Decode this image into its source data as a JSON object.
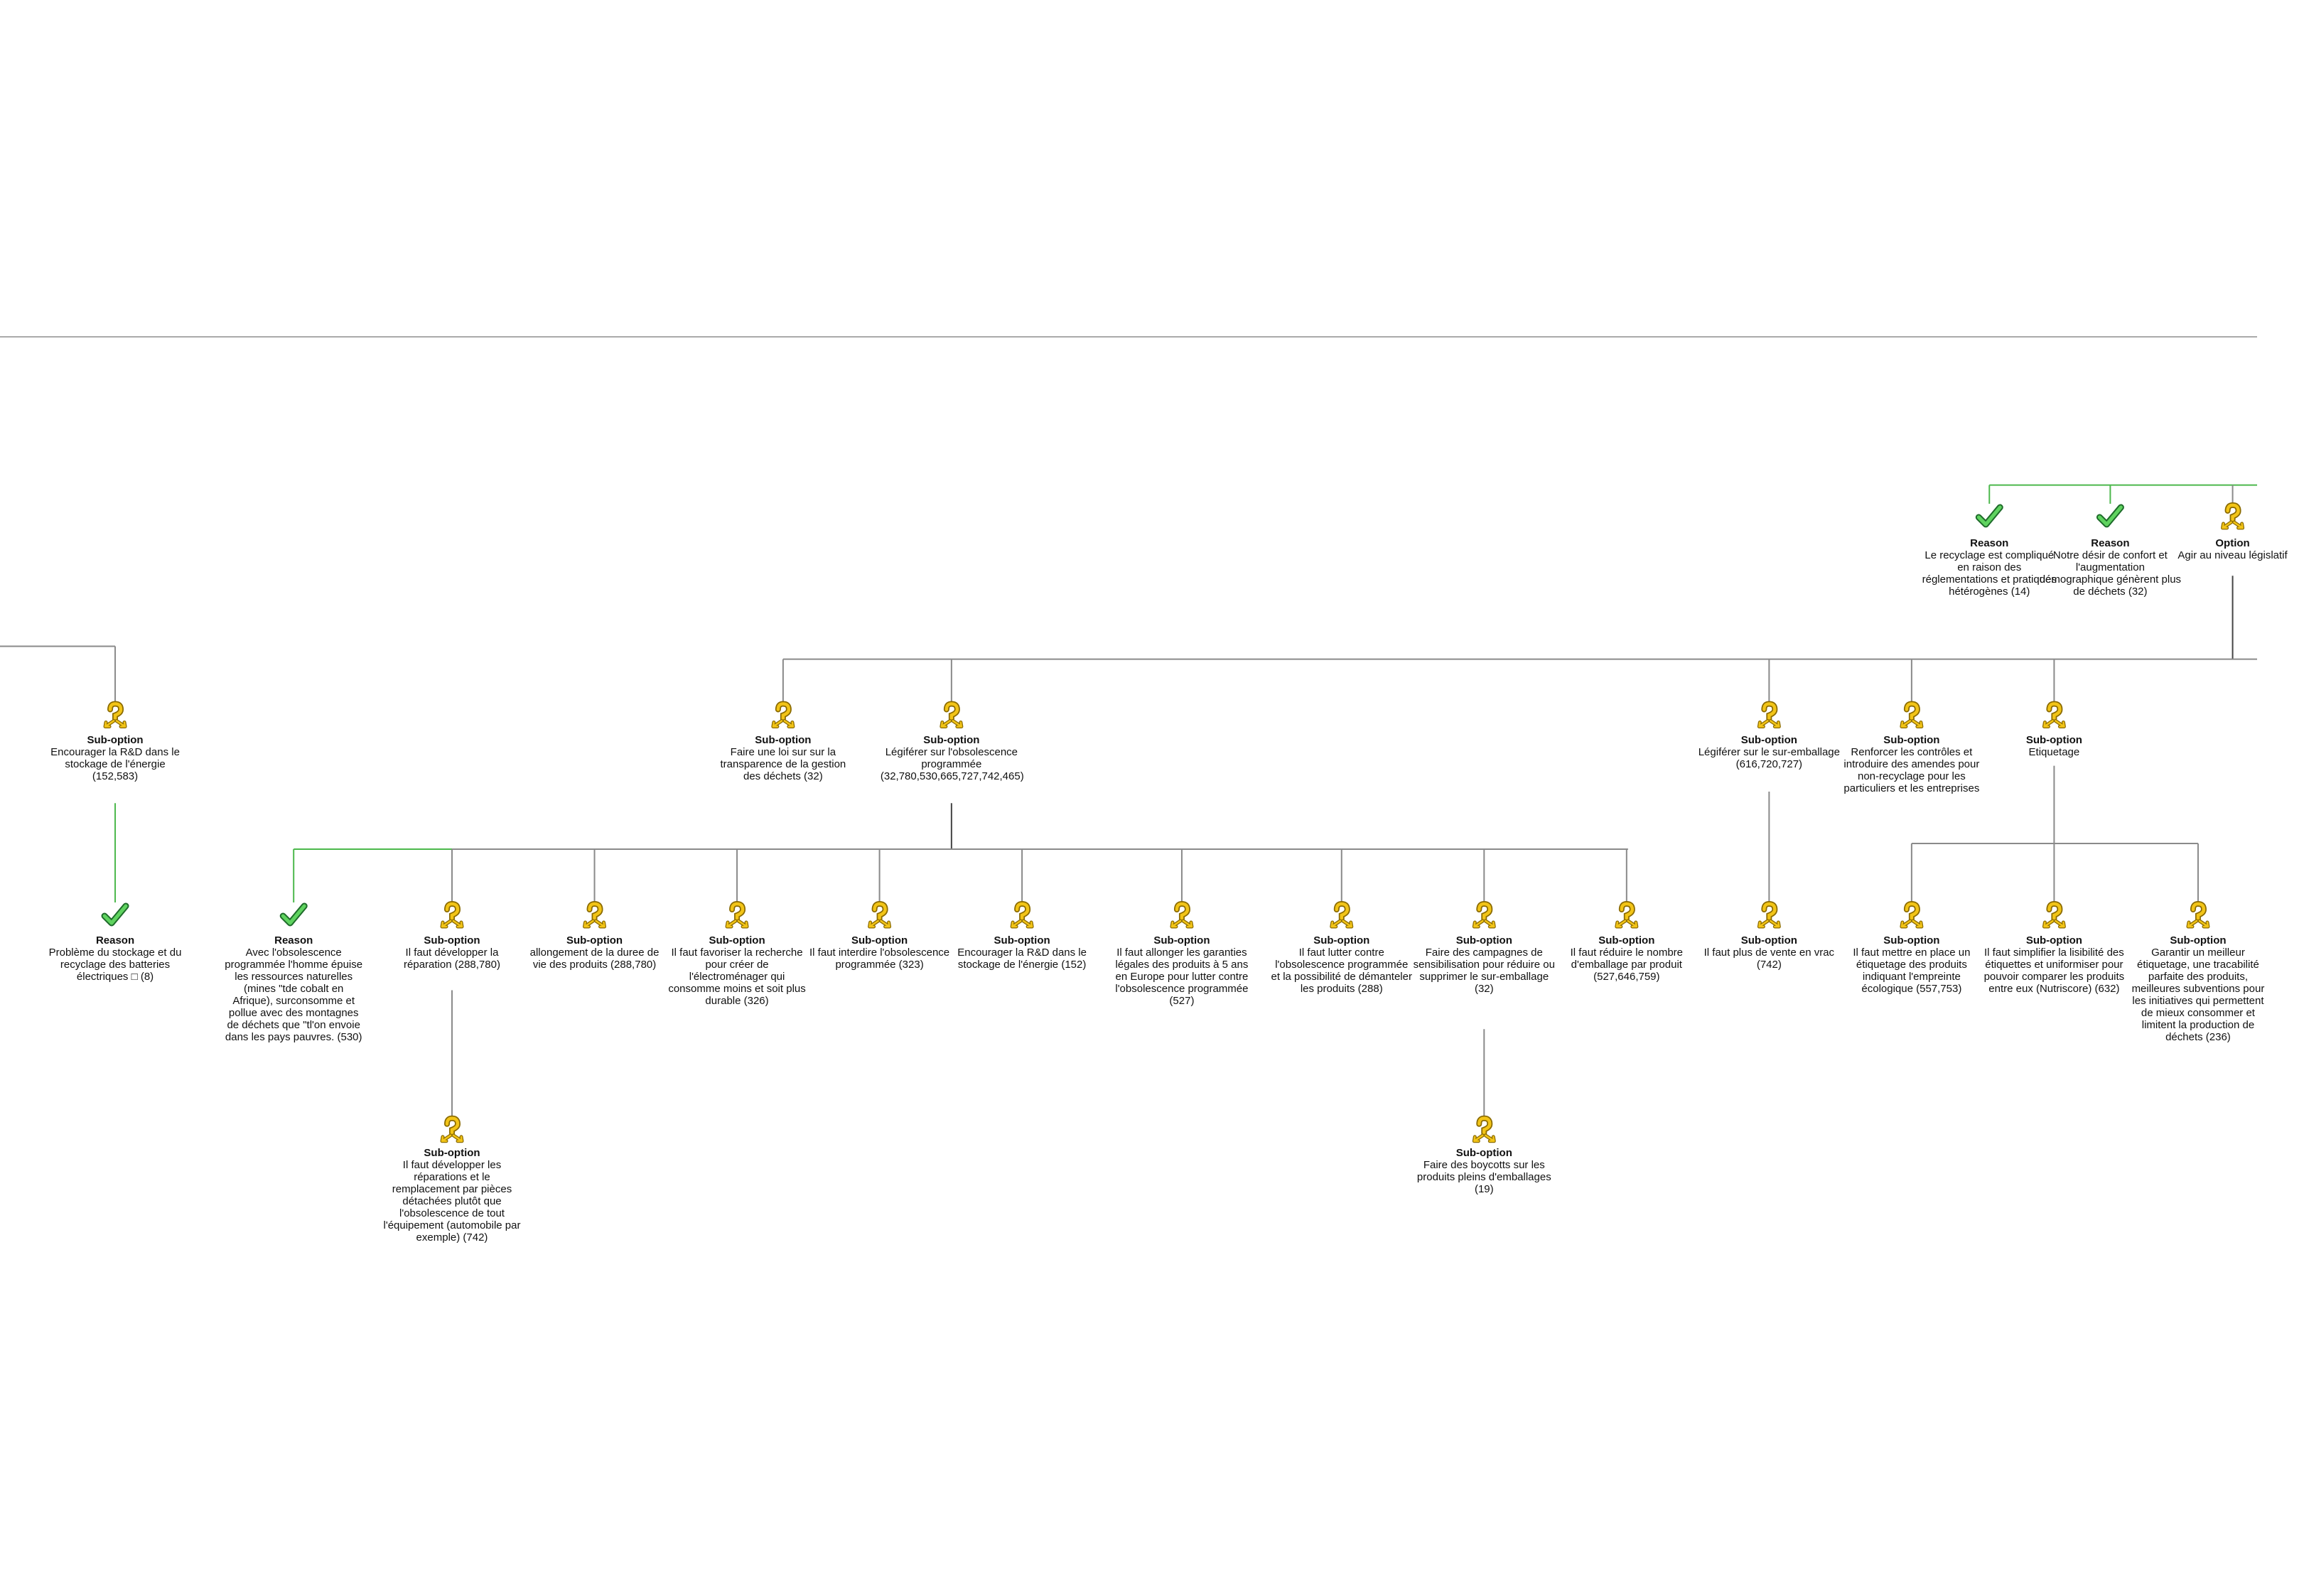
{
  "nodes": [
    {
      "type": "Reason",
      "text": "Le recyclage est compliqué en raison des réglementations et pratiques hétérogènes (14)"
    },
    {
      "type": "Reason",
      "text": "Notre désir de confort et l'augmentation démographique génèrent plus de déchets (32)"
    },
    {
      "type": "Option",
      "text": "Agir au niveau législatif"
    },
    {
      "type": "Sub-option",
      "text": "Encourager la R&D dans le stockage de l'énergie (152,583)"
    },
    {
      "type": "Sub-option",
      "text": "Faire une loi sur sur la transparence de la gestion des déchets (32)"
    },
    {
      "type": "Sub-option",
      "text": "Légiférer sur l'obsolescence programmée (32,780,530,665,727,742,465)"
    },
    {
      "type": "Sub-option",
      "text": "Légiférer sur le sur-emballage (616,720,727)"
    },
    {
      "type": "Sub-option",
      "text": "Renforcer les contrôles et introduire des amendes pour non-recyclage pour les particuliers et les entreprises"
    },
    {
      "type": "Sub-option",
      "text": "Etiquetage"
    },
    {
      "type": "Reason",
      "text": "Problème du stockage et du recyclage des batteries électriques □ (8)"
    },
    {
      "type": "Reason",
      "text": "Avec l'obsolescence programmée l'homme épuise les ressources naturelles (mines \"tde cobalt en Afrique), surconsomme et pollue avec des montagnes de déchets que \"tl'on envoie dans les pays pauvres. (530)"
    },
    {
      "type": "Sub-option",
      "text": "Il faut développer la réparation (288,780)"
    },
    {
      "type": "Sub-option",
      "text": "allongement de la duree de vie des produits (288,780)"
    },
    {
      "type": "Sub-option",
      "text": "Il faut favoriser la recherche pour créer de l'électroménager qui consomme moins et soit plus durable (326)"
    },
    {
      "type": "Sub-option",
      "text": "Il faut interdire l'obsolescence programmée (323)"
    },
    {
      "type": "Sub-option",
      "text": "Encourager la R&D dans le stockage de l'énergie (152)"
    },
    {
      "type": "Sub-option",
      "text": "Il faut allonger les garanties légales des produits à 5 ans en Europe pour lutter contre l'obsolescence programmée (527)"
    },
    {
      "type": "Sub-option",
      "text": "Il faut lutter contre l'obsolescence programmée et la possibilité de démanteler les produits (288)"
    },
    {
      "type": "Sub-option",
      "text": "Faire des campagnes de sensibilisation pour réduire ou supprimer le sur-emballage (32)"
    },
    {
      "type": "Sub-option",
      "text": "Il faut réduire le nombre d'emballage par produit (527,646,759)"
    },
    {
      "type": "Sub-option",
      "text": "Il faut plus de vente en vrac (742)"
    },
    {
      "type": "Sub-option",
      "text": "Il faut mettre en place un étiquetage des produits indiquant l'empreinte écologique (557,753)"
    },
    {
      "type": "Sub-option",
      "text": "Il faut simplifier la lisibilité des étiquettes et uniformiser pour pouvoir comparer les produits entre eux (Nutriscore) (632)"
    },
    {
      "type": "Sub-option",
      "text": "Garantir un meilleur étiquetage, une tracabilité parfaite des produits, meilleures subventions pour les initiatives qui permettent de mieux consommer et limitent la production de déchets (236)"
    },
    {
      "type": "Sub-option",
      "text": "Il faut développer les réparations et le remplacement par pièces détachées plutôt que l'obsolescence de tout l'équipement (automobile par exemple) (742)"
    },
    {
      "type": "Sub-option",
      "text": "Faire des boycotts sur les produits pleins d'emballages (19)"
    }
  ]
}
